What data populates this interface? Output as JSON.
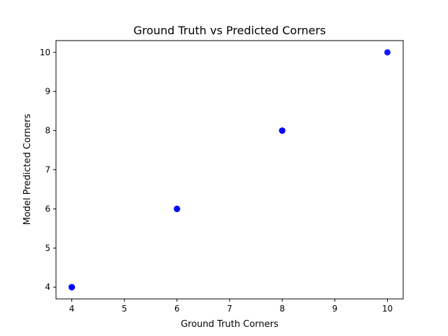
{
  "chart_data": {
    "type": "scatter",
    "title": "Ground Truth vs Predicted Corners",
    "xlabel": "Ground Truth Corners",
    "ylabel": "Model Predicted Corners",
    "xlim": [
      3.7,
      10.3
    ],
    "ylim": [
      3.7,
      10.3
    ],
    "xticks": [
      4,
      5,
      6,
      7,
      8,
      9,
      10
    ],
    "yticks": [
      4,
      5,
      6,
      7,
      8,
      9,
      10
    ],
    "grid": false,
    "legend": "none",
    "series": [
      {
        "color": "#0000ff",
        "x": [
          4,
          4,
          4,
          4,
          6,
          6,
          6,
          8,
          8,
          8,
          10
        ],
        "y": [
          4,
          4,
          4,
          4,
          6,
          6,
          6,
          8,
          8,
          8,
          10
        ]
      }
    ]
  }
}
